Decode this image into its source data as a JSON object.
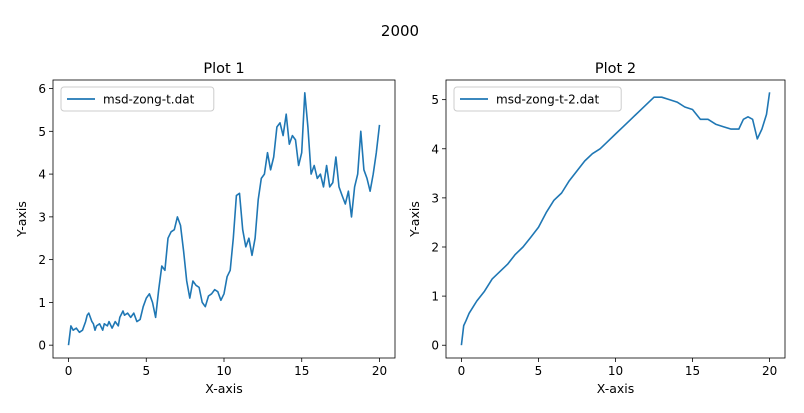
{
  "figure": {
    "suptitle": "2000"
  },
  "chart_data": [
    {
      "type": "line",
      "title": "Plot 1",
      "xlabel": "X-axis",
      "ylabel": "Y-axis",
      "xlim": [
        -1,
        21
      ],
      "ylim": [
        -0.3,
        6.2
      ],
      "xticks": [
        0,
        5,
        10,
        15,
        20
      ],
      "yticks": [
        0,
        1,
        2,
        3,
        4,
        5,
        6
      ],
      "legend": "upper-left",
      "color": "#1f77b4",
      "series": [
        {
          "name": "msd-zong-t.dat",
          "x": [
            0,
            0.15,
            0.3,
            0.5,
            0.7,
            0.9,
            1.1,
            1.2,
            1.3,
            1.5,
            1.6,
            1.7,
            1.8,
            2.0,
            2.2,
            2.3,
            2.5,
            2.6,
            2.8,
            3.0,
            3.2,
            3.3,
            3.5,
            3.6,
            3.8,
            4.0,
            4.2,
            4.4,
            4.6,
            4.8,
            5.0,
            5.2,
            5.4,
            5.6,
            5.8,
            6.0,
            6.2,
            6.4,
            6.6,
            6.8,
            7.0,
            7.2,
            7.4,
            7.6,
            7.8,
            8.0,
            8.2,
            8.4,
            8.6,
            8.8,
            9.0,
            9.2,
            9.4,
            9.6,
            9.8,
            10.0,
            10.2,
            10.4,
            10.6,
            10.8,
            11.0,
            11.2,
            11.4,
            11.6,
            11.8,
            12.0,
            12.2,
            12.4,
            12.6,
            12.8,
            13.0,
            13.2,
            13.4,
            13.6,
            13.8,
            14.0,
            14.2,
            14.4,
            14.6,
            14.8,
            15.0,
            15.2,
            15.4,
            15.6,
            15.8,
            16.0,
            16.2,
            16.4,
            16.6,
            16.8,
            17.0,
            17.2,
            17.4,
            17.6,
            17.8,
            18.0,
            18.2,
            18.4,
            18.6,
            18.8,
            19.0,
            19.2,
            19.4,
            19.6,
            19.8,
            20.0
          ],
          "values": [
            0.0,
            0.45,
            0.35,
            0.4,
            0.3,
            0.35,
            0.55,
            0.7,
            0.75,
            0.55,
            0.5,
            0.35,
            0.45,
            0.5,
            0.35,
            0.5,
            0.45,
            0.55,
            0.4,
            0.55,
            0.45,
            0.65,
            0.8,
            0.7,
            0.75,
            0.65,
            0.75,
            0.55,
            0.6,
            0.9,
            1.1,
            1.2,
            1.0,
            0.65,
            1.3,
            1.85,
            1.75,
            2.5,
            2.65,
            2.7,
            3.0,
            2.8,
            2.2,
            1.5,
            1.1,
            1.5,
            1.4,
            1.35,
            1.0,
            0.9,
            1.15,
            1.2,
            1.3,
            1.25,
            1.05,
            1.2,
            1.6,
            1.75,
            2.5,
            3.5,
            3.55,
            2.7,
            2.3,
            2.5,
            2.1,
            2.5,
            3.4,
            3.9,
            4.0,
            4.5,
            4.1,
            4.4,
            5.1,
            5.2,
            4.9,
            5.4,
            4.7,
            4.9,
            4.8,
            4.2,
            4.5,
            5.9,
            5.1,
            4.0,
            4.2,
            3.9,
            4.0,
            3.7,
            4.2,
            3.7,
            3.8,
            4.4,
            3.7,
            3.5,
            3.3,
            3.6,
            3.0,
            3.7,
            4.0,
            5.0,
            4.1,
            3.9,
            3.6,
            4.0,
            4.5,
            5.15
          ]
        }
      ]
    },
    {
      "type": "line",
      "title": "Plot 2",
      "xlabel": "X-axis",
      "ylabel": "Y-axis",
      "xlim": [
        -1,
        21
      ],
      "ylim": [
        -0.26,
        5.4
      ],
      "xticks": [
        0,
        5,
        10,
        15,
        20
      ],
      "yticks": [
        0,
        1,
        2,
        3,
        4,
        5
      ],
      "legend": "upper-left",
      "color": "#1f77b4",
      "series": [
        {
          "name": "msd-zong-t-2.dat",
          "x": [
            0,
            0.15,
            0.3,
            0.5,
            0.8,
            1.0,
            1.5,
            2.0,
            2.5,
            3.0,
            3.5,
            4.0,
            4.5,
            5.0,
            5.5,
            6.0,
            6.5,
            7.0,
            7.5,
            8.0,
            8.5,
            9.0,
            9.5,
            10.0,
            10.5,
            11.0,
            11.5,
            12.0,
            12.5,
            13.0,
            13.5,
            14.0,
            14.5,
            15.0,
            15.5,
            16.0,
            16.5,
            17.0,
            17.5,
            18.0,
            18.3,
            18.6,
            18.9,
            19.2,
            19.5,
            19.8,
            20.0
          ],
          "values": [
            0.0,
            0.4,
            0.5,
            0.65,
            0.8,
            0.9,
            1.1,
            1.35,
            1.5,
            1.65,
            1.85,
            2.0,
            2.2,
            2.4,
            2.7,
            2.95,
            3.1,
            3.35,
            3.55,
            3.75,
            3.9,
            4.0,
            4.15,
            4.3,
            4.45,
            4.6,
            4.75,
            4.9,
            5.05,
            5.05,
            5.0,
            4.95,
            4.85,
            4.8,
            4.6,
            4.6,
            4.5,
            4.45,
            4.4,
            4.4,
            4.6,
            4.65,
            4.6,
            4.2,
            4.4,
            4.7,
            5.15
          ]
        }
      ]
    }
  ]
}
